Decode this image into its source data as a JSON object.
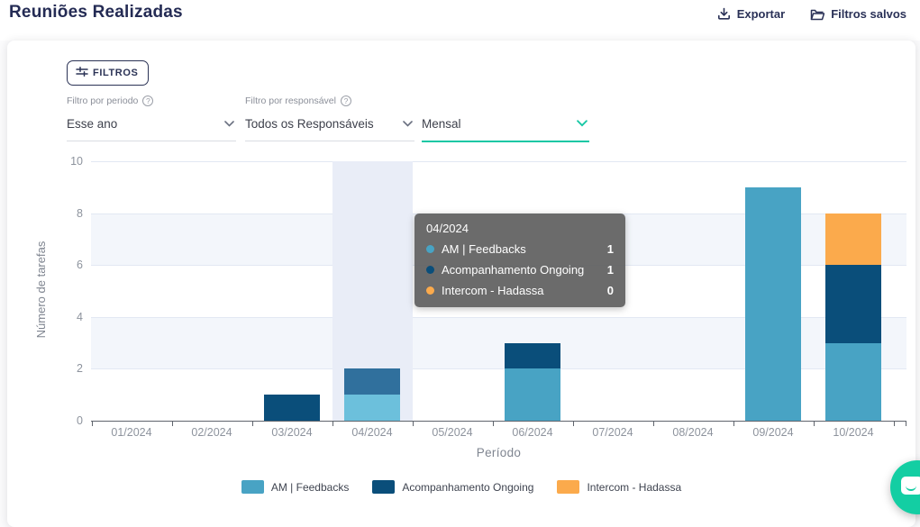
{
  "header": {
    "title": "Reuniões Realizadas",
    "export_label": "Exportar",
    "saved_filters_label": "Filtros salvos"
  },
  "filters": {
    "button_label": "FILTROS",
    "period": {
      "label": "Filtro por periodo",
      "value": "Esse ano"
    },
    "responsible": {
      "label": "Filtro por responsável",
      "value": "Todos os Responsáveis"
    },
    "granularity": {
      "value": "Mensal"
    }
  },
  "tooltip": {
    "title": "04/2024",
    "rows": [
      {
        "label": "AM | Feedbacks",
        "value": "1"
      },
      {
        "label": "Acompanhamento Ongoing",
        "value": "1"
      },
      {
        "label": "Intercom - Hadassa",
        "value": "0"
      }
    ]
  },
  "chart_data": {
    "type": "bar",
    "stacked": true,
    "title": "",
    "xlabel": "Período",
    "ylabel": "Número de tarefas",
    "categories": [
      "01/2024",
      "02/2024",
      "03/2024",
      "04/2024",
      "05/2024",
      "06/2024",
      "07/2024",
      "08/2024",
      "09/2024",
      "10/2024"
    ],
    "series": [
      {
        "name": "AM | Feedbacks",
        "color": "#48a3c4",
        "hover_color": "#6cc0dc",
        "values": [
          0,
          0,
          0,
          1,
          0,
          2,
          0,
          0,
          9,
          3
        ]
      },
      {
        "name": "Acompanhamento Ongoing",
        "color": "#0a4e7a",
        "hover_color": "#30709d",
        "values": [
          0,
          0,
          1,
          1,
          0,
          1,
          0,
          0,
          0,
          3
        ]
      },
      {
        "name": "Intercom - Hadassa",
        "color": "#fbaa4c",
        "hover_color": "#fbaa4c",
        "values": [
          0,
          0,
          0,
          0,
          0,
          0,
          0,
          0,
          0,
          2
        ]
      }
    ],
    "ylim": [
      0,
      10
    ],
    "yticks": [
      0,
      2,
      4,
      6,
      8,
      10
    ],
    "hovered_category_index": 3,
    "grid": true,
    "legend_position": "bottom"
  },
  "colors": {
    "accent_teal": "#15c7a4",
    "navy_text": "#2a3157",
    "grid_stripe": "#f3f6fb",
    "hover_band": "#e9edf7",
    "chat_widget": "#13cea3"
  }
}
